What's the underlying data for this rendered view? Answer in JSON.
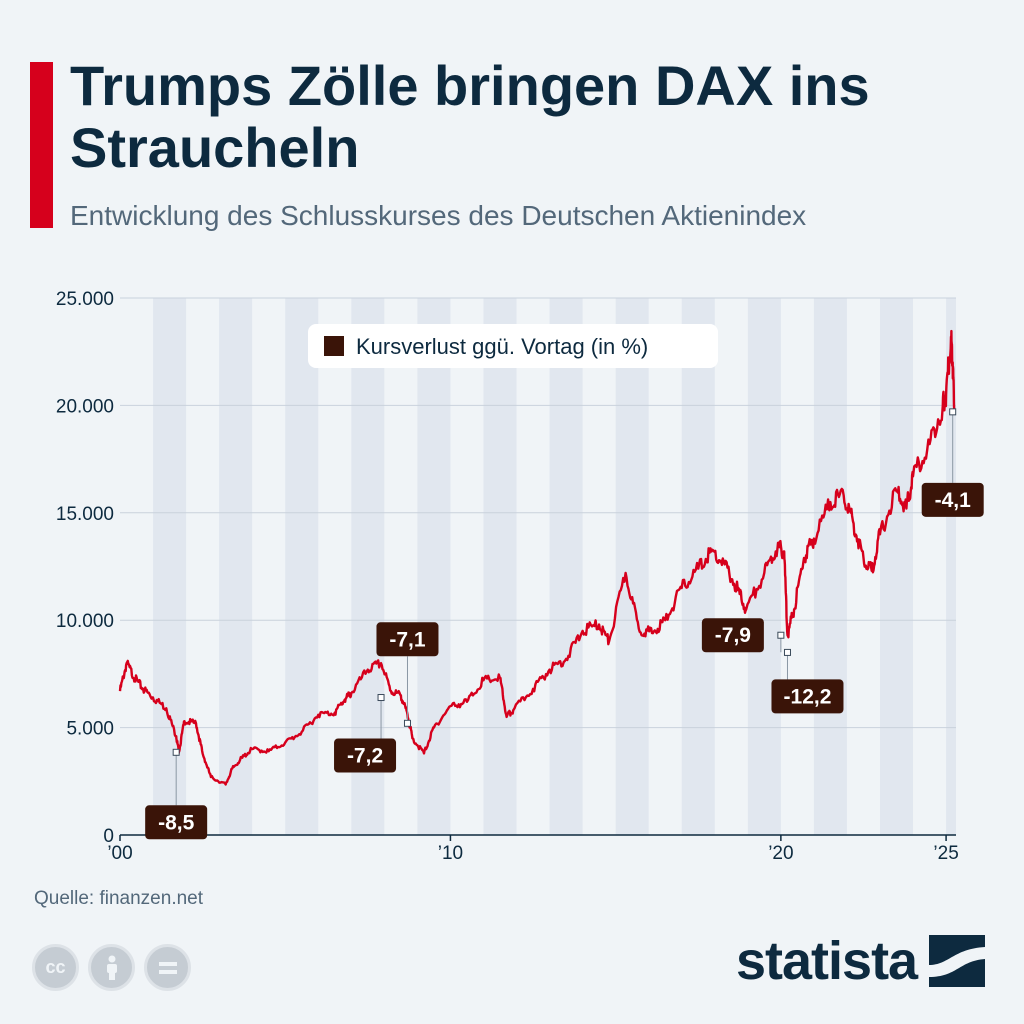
{
  "header": {
    "title": "Trumps Zölle bringen DAX ins Straucheln",
    "subtitle": "Entwicklung des Schlusskurses des Deutschen Aktienindex"
  },
  "footer": {
    "source": "Quelle: finanzen.net",
    "brand": "statista",
    "license_icons": [
      "cc-icon",
      "attribution-icon",
      "no-derivatives-icon"
    ]
  },
  "colors": {
    "line": "#d6001c",
    "title": "#0d2a3f",
    "accent": "#d6001c",
    "annotation_bg": "#3a1408",
    "band": "#e1e7ef",
    "background": "#f0f4f7"
  },
  "chart_data": {
    "type": "line",
    "title": "Trumps Zölle bringen DAX ins Straucheln",
    "subtitle": "Entwicklung des Schlusskurses des Deutschen Aktienindex",
    "xlabel": "",
    "ylabel": "",
    "xlim": [
      2000,
      2025.3
    ],
    "ylim": [
      0,
      25000
    ],
    "y_ticks": [
      0,
      5000,
      10000,
      15000,
      20000,
      25000
    ],
    "y_tick_labels": [
      "0",
      "5.000",
      "10.000",
      "15.000",
      "20.000",
      "25.000"
    ],
    "x_ticks": [
      2000,
      2010,
      2020,
      2025
    ],
    "x_tick_labels": [
      "’00",
      "’10",
      "’20",
      "’25"
    ],
    "grid": true,
    "alternating_year_bands": true,
    "legend": {
      "placement": "top-center",
      "entries": [
        "Kursverlust ggü. Vortag (in %)"
      ]
    },
    "series": [
      {
        "x": [
          2000.0,
          2000.2,
          2000.45,
          2000.7,
          2001.0,
          2001.4,
          2001.7,
          2001.78,
          2001.95,
          2002.3,
          2002.5,
          2002.75,
          2003.2,
          2003.4,
          2003.7,
          2004.0,
          2004.5,
          2005.0,
          2005.5,
          2006.0,
          2006.5,
          2006.8,
          2007.0,
          2007.5,
          2007.9,
          2008.2,
          2008.5,
          2008.7,
          2008.85,
          2009.2,
          2009.5,
          2010.0,
          2010.5,
          2011.0,
          2011.5,
          2011.7,
          2011.9,
          2012.5,
          2013.0,
          2013.5,
          2014.0,
          2014.5,
          2014.8,
          2015.3,
          2015.7,
          2016.1,
          2016.5,
          2017.0,
          2017.5,
          2017.9,
          2018.3,
          2018.7,
          2018.95,
          2019.5,
          2019.9,
          2020.1,
          2020.2,
          2020.4,
          2020.7,
          2021.0,
          2021.5,
          2021.9,
          2022.2,
          2022.5,
          2022.75,
          2023.0,
          2023.5,
          2023.8,
          2024.0,
          2024.5,
          2024.9,
          2025.0,
          2025.15,
          2025.2,
          2025.25
        ],
        "y": [
          6700,
          8000,
          7300,
          6800,
          6400,
          5900,
          4600,
          3850,
          5300,
          5200,
          3800,
          2700,
          2350,
          3100,
          3600,
          4000,
          3900,
          4300,
          4800,
          5600,
          5700,
          6300,
          6600,
          7700,
          8000,
          6700,
          6500,
          5600,
          4500,
          3800,
          5000,
          6000,
          6200,
          7200,
          7300,
          5500,
          5800,
          6800,
          7700,
          8200,
          9500,
          9800,
          9000,
          12200,
          9600,
          9400,
          10000,
          11500,
          12400,
          13200,
          12600,
          11400,
          10500,
          12200,
          13400,
          13200,
          9300,
          10500,
          12900,
          13800,
          15500,
          15800,
          14500,
          12900,
          12300,
          14000,
          16000,
          15200,
          16700,
          18200,
          20000,
          20500,
          23200,
          22000,
          19700
        ]
      }
    ],
    "annotations": [
      {
        "label": "-8,5",
        "x": 2001.7,
        "y": 3850
      },
      {
        "label": "-7,2",
        "x": 2007.9,
        "y": 6400
      },
      {
        "label": "-7,1",
        "x": 2008.7,
        "y": 5200
      },
      {
        "label": "-7,9",
        "x": 2020.0,
        "y": 9300
      },
      {
        "label": "-12,2",
        "x": 2020.2,
        "y": 8500
      },
      {
        "label": "-4,1",
        "x": 2025.2,
        "y": 19700
      }
    ]
  }
}
